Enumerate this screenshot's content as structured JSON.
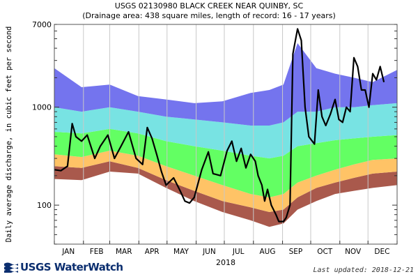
{
  "chart_data": {
    "type": "area",
    "title": "USGS 02130980 BLACK CREEK NEAR QUINBY, SC",
    "subtitle": "(Drainage area: 438 square miles, length of record: 16 - 17 years)",
    "ylabel": "Daily average discharge, in cubic feet per second",
    "xlabel": "2018",
    "y_scale": "log",
    "ylim": [
      40,
      7000
    ],
    "y_ticks": [
      {
        "value": 100,
        "label": "100"
      },
      {
        "value": 1000,
        "label": "1000"
      },
      {
        "value": 7000,
        "label": "7000"
      }
    ],
    "months": [
      {
        "label": "JAN",
        "day": 16
      },
      {
        "label": "FEB",
        "day": 46
      },
      {
        "label": "MAR",
        "day": 75
      },
      {
        "label": "APR",
        "day": 105
      },
      {
        "label": "MAY",
        "day": 136
      },
      {
        "label": "JUN",
        "day": 166
      },
      {
        "label": "JUL",
        "day": 197
      },
      {
        "label": "AUG",
        "day": 228
      },
      {
        "label": "SEP",
        "day": 258
      },
      {
        "label": "OCT",
        "day": 289
      },
      {
        "label": "NOV",
        "day": 319
      },
      {
        "label": "DEC",
        "day": 350
      }
    ],
    "month_boundaries": [
      1,
      32,
      60,
      91,
      121,
      152,
      182,
      213,
      244,
      274,
      305,
      335,
      366
    ],
    "xlim": [
      1,
      366
    ],
    "grid": "vertical month lines",
    "percentile_bands": [
      {
        "color": "#a9594c",
        "x": [
          1,
          30,
          60,
          90,
          120,
          150,
          180,
          210,
          230,
          245,
          260,
          280,
          300,
          320,
          340,
          366
        ],
        "lower": [
          185,
          180,
          220,
          210,
          150,
          110,
          85,
          70,
          60,
          65,
          90,
          110,
          130,
          140,
          150,
          160
        ],
        "upper": [
          250,
          240,
          280,
          240,
          180,
          140,
          110,
          95,
          85,
          90,
          120,
          150,
          170,
          190,
          210,
          220
        ]
      },
      {
        "color": "#ffc366",
        "x": [
          1,
          30,
          60,
          90,
          120,
          150,
          180,
          210,
          230,
          245,
          260,
          280,
          300,
          320,
          340,
          366
        ],
        "lower": [
          250,
          240,
          280,
          240,
          180,
          140,
          110,
          95,
          85,
          90,
          120,
          150,
          170,
          190,
          210,
          220
        ],
        "upper": [
          330,
          310,
          360,
          320,
          250,
          200,
          160,
          130,
          120,
          130,
          170,
          200,
          230,
          260,
          290,
          300
        ]
      },
      {
        "color": "#63ff63",
        "x": [
          1,
          30,
          60,
          90,
          120,
          150,
          180,
          210,
          230,
          245,
          260,
          280,
          300,
          320,
          340,
          366
        ],
        "lower": [
          330,
          310,
          360,
          320,
          250,
          200,
          160,
          130,
          120,
          130,
          170,
          200,
          230,
          260,
          290,
          300
        ],
        "upper": [
          560,
          540,
          600,
          540,
          450,
          400,
          360,
          320,
          300,
          320,
          400,
          430,
          460,
          480,
          500,
          520
        ]
      },
      {
        "color": "#78e3e3",
        "x": [
          1,
          30,
          60,
          90,
          120,
          150,
          180,
          210,
          230,
          245,
          260,
          280,
          300,
          320,
          340,
          366
        ],
        "lower": [
          560,
          540,
          600,
          540,
          450,
          400,
          360,
          320,
          300,
          320,
          400,
          430,
          460,
          480,
          500,
          520
        ],
        "upper": [
          1000,
          900,
          1000,
          900,
          800,
          750,
          700,
          650,
          650,
          700,
          900,
          900,
          1000,
          1000,
          1050,
          1100
        ]
      },
      {
        "color": "#7474ee",
        "x": [
          1,
          30,
          60,
          90,
          120,
          150,
          180,
          210,
          230,
          245,
          260,
          280,
          300,
          320,
          340,
          366
        ],
        "lower": [
          1000,
          900,
          1000,
          900,
          800,
          750,
          700,
          650,
          650,
          700,
          900,
          900,
          1000,
          1000,
          1050,
          1100
        ],
        "upper": [
          2500,
          1600,
          1700,
          1300,
          1200,
          1100,
          1150,
          1400,
          1500,
          1700,
          4500,
          2500,
          2200,
          2000,
          1800,
          2400
        ]
      }
    ],
    "series": [
      {
        "color": "#000000",
        "x": [
          1,
          8,
          15,
          20,
          24,
          30,
          36,
          44,
          50,
          58,
          65,
          72,
          80,
          88,
          95,
          100,
          105,
          110,
          115,
          120,
          128,
          135,
          140,
          145,
          150,
          158,
          165,
          170,
          178,
          185,
          190,
          195,
          200,
          205,
          210,
          215,
          218,
          222,
          225,
          228,
          232,
          237,
          240,
          245,
          248,
          252,
          255,
          260,
          264,
          268,
          272,
          278,
          282,
          286,
          290,
          295,
          300,
          304,
          308,
          312,
          316,
          320,
          324,
          328,
          332,
          336,
          340,
          344,
          348,
          352
        ],
        "y": [
          230,
          225,
          250,
          680,
          500,
          450,
          520,
          300,
          400,
          520,
          300,
          400,
          560,
          300,
          260,
          620,
          480,
          330,
          220,
          160,
          190,
          140,
          110,
          105,
          120,
          230,
          350,
          210,
          200,
          360,
          450,
          280,
          380,
          240,
          330,
          280,
          200,
          160,
          110,
          145,
          100,
          80,
          68,
          68,
          75,
          100,
          3500,
          6300,
          4800,
          1000,
          500,
          420,
          1500,
          800,
          650,
          850,
          1200,
          750,
          700,
          1000,
          900,
          3200,
          2600,
          1500,
          1500,
          1000,
          2200,
          1900,
          2600,
          1800
        ]
      }
    ]
  },
  "footer": {
    "logo_text": "USGS WaterWatch",
    "last_updated": "Last updated: 2018-12-21"
  }
}
